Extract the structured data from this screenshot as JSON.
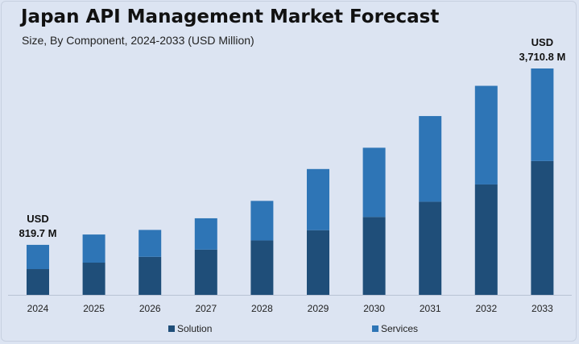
{
  "chart_data": {
    "type": "bar",
    "stacked": true,
    "title": "Japan API Management Market Forecast",
    "subtitle": "Size, By Component, 2024-2033 (USD Million)",
    "categories": [
      "2024",
      "2025",
      "2026",
      "2027",
      "2028",
      "2029",
      "2030",
      "2031",
      "2032",
      "2033"
    ],
    "series": [
      {
        "name": "Solution",
        "color": "#1f4e79",
        "values": [
          422.4,
          528.1,
          623.5,
          741.4,
          892.0,
          1060.1,
          1276.6,
          1526.4,
          1809.7,
          2194.0
        ]
      },
      {
        "name": "Services",
        "color": "#2e75b6",
        "values": [
          397.3,
          461.1,
          441.0,
          513.9,
          648.3,
          1002.5,
          1134.8,
          1404.5,
          1616.8,
          1516.8
        ]
      }
    ],
    "totals_labels": [
      {
        "category": "2024",
        "unit": "USD",
        "value": "819.7 M"
      },
      {
        "category": "2033",
        "unit": "USD",
        "value": "3,710.8 M"
      }
    ],
    "ylim": [
      0,
      3710.8
    ],
    "grid": false,
    "legend_position": "bottom"
  }
}
